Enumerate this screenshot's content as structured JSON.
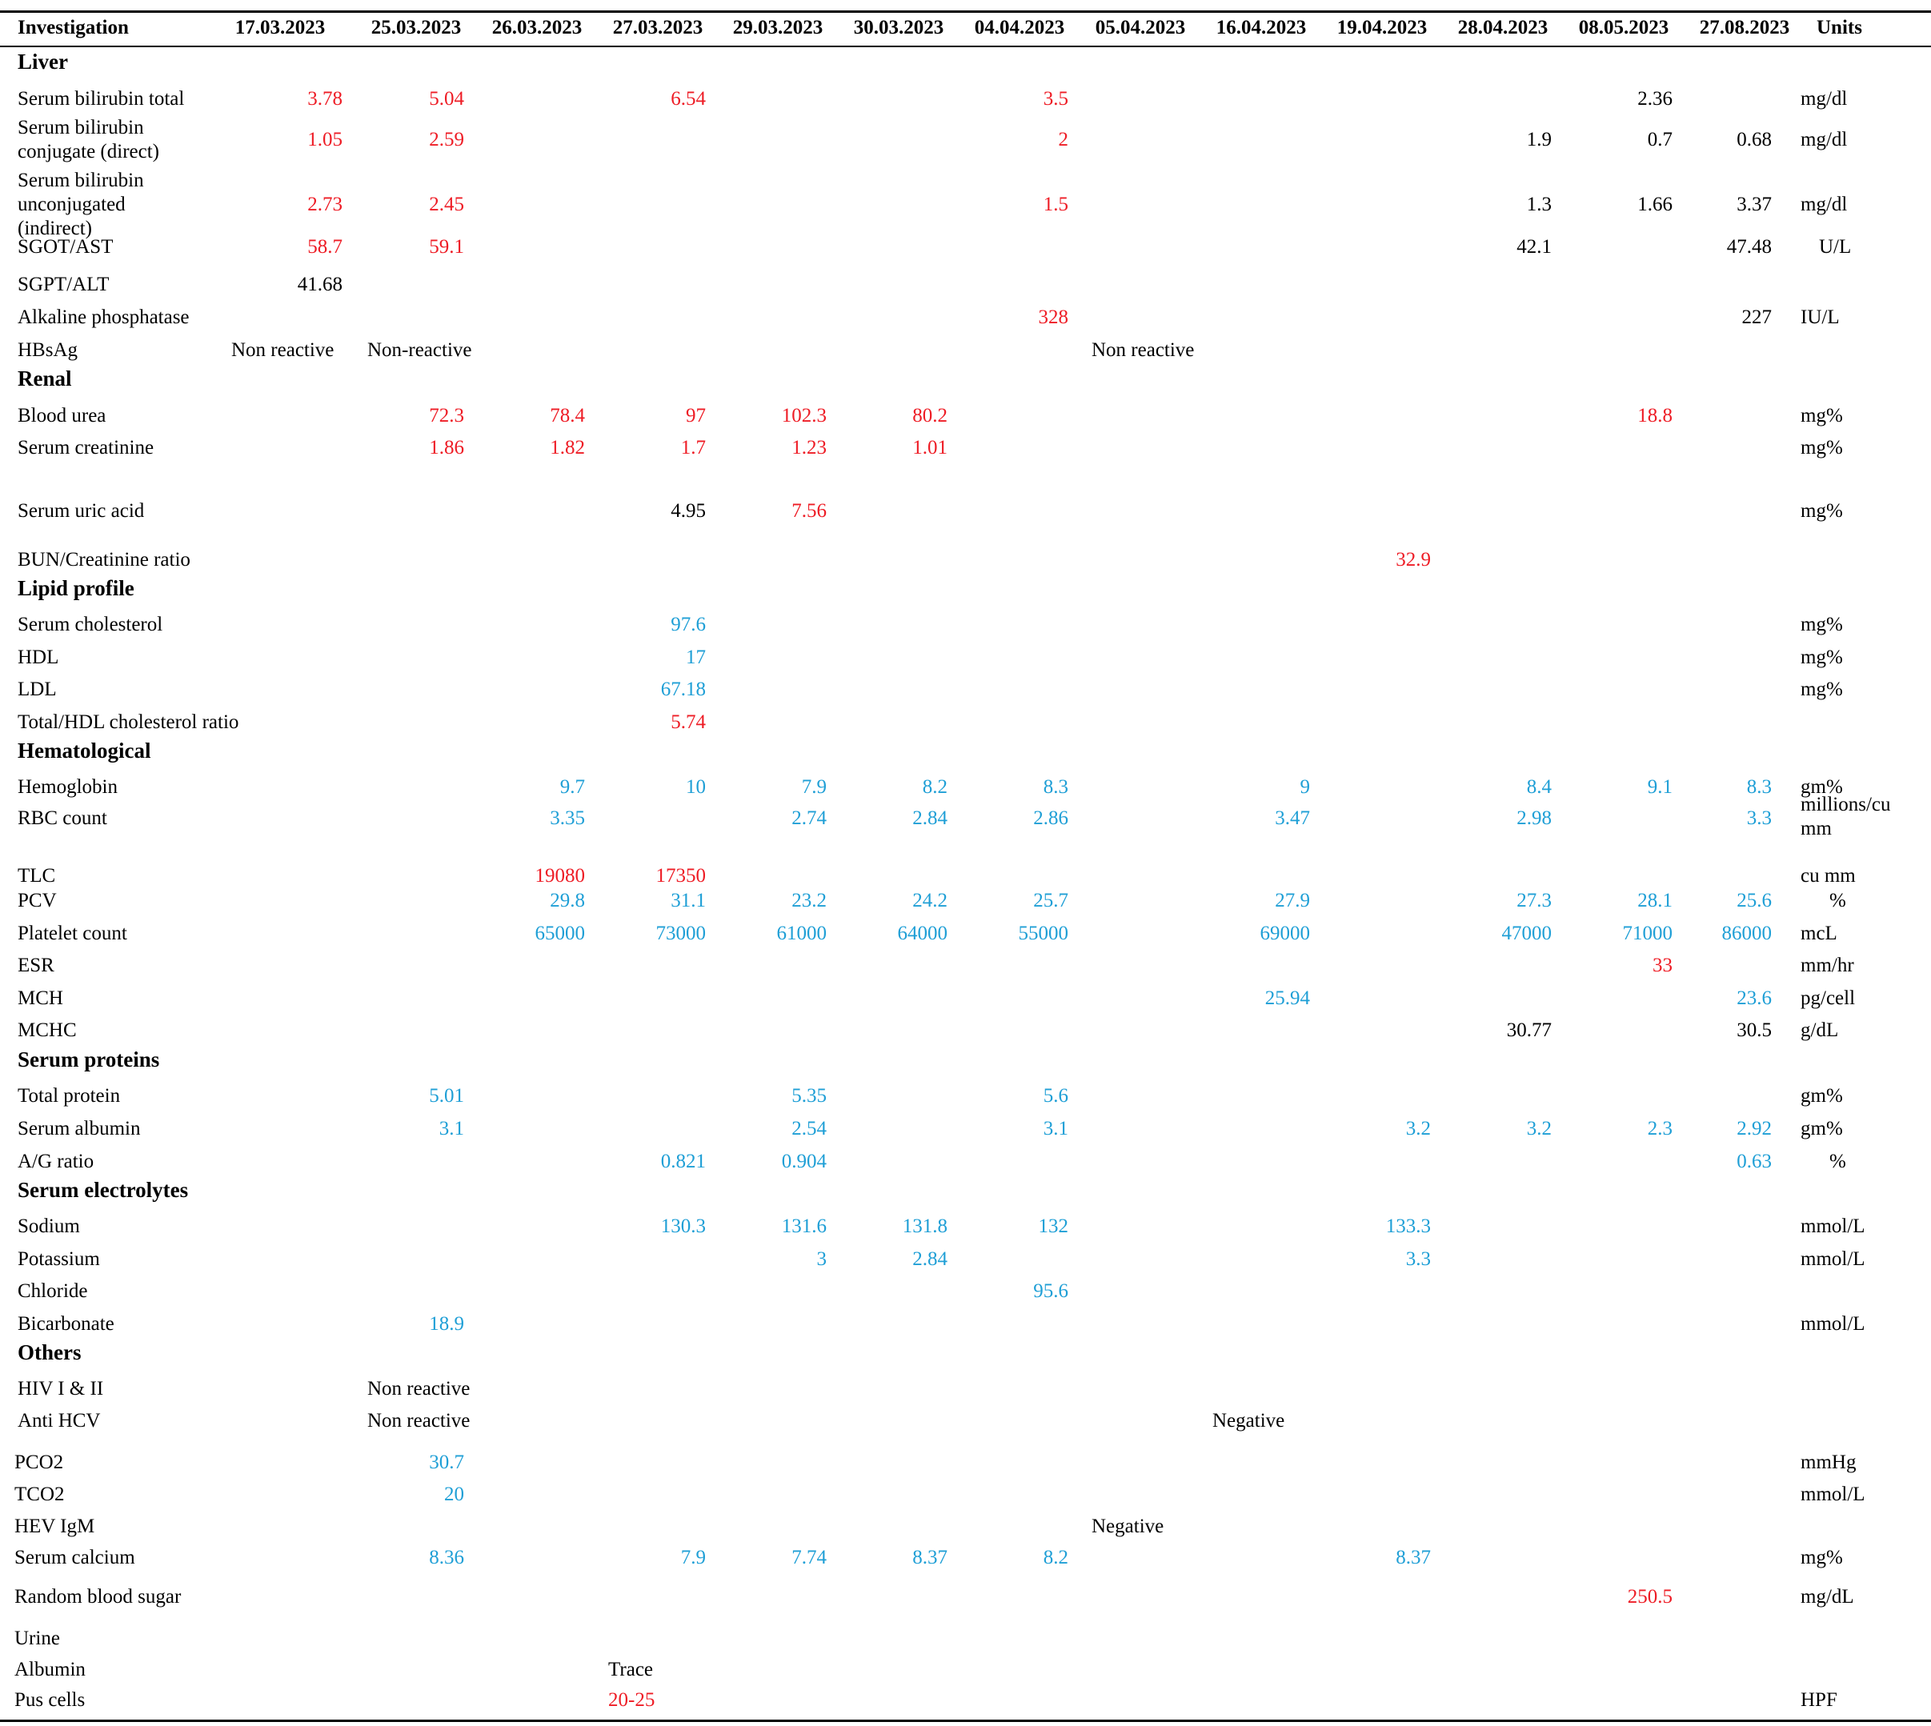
{
  "columns": [
    "Investigation",
    "17.03.2023",
    "25.03.2023",
    "26.03.2023",
    "27.03.2023",
    "29.03.2023",
    "30.03.2023",
    "04.04.2023",
    "05.04.2023",
    "16.04.2023",
    "19.04.2023",
    "28.04.2023",
    "08.05.2023",
    "27.08.2023",
    "Units"
  ],
  "colors": {
    "r": "#ee1c25",
    "b": "#1f9fd6",
    "k": "#000000"
  },
  "rows": [
    {
      "section": "Liver"
    },
    {
      "label": "Serum bilirubin total",
      "cells": [
        [
          1,
          "3.78",
          "r"
        ],
        [
          2,
          "5.04",
          "r"
        ],
        [
          4,
          "6.54",
          "r"
        ],
        [
          7,
          "3.5",
          "r"
        ],
        [
          12,
          "2.36",
          "k"
        ]
      ],
      "unit": "mg/dl"
    },
    {
      "label": "Serum bilirubin\nconjugate (direct)",
      "cells": [
        [
          1,
          "1.05",
          "r"
        ],
        [
          2,
          "2.59",
          "r"
        ],
        [
          7,
          "2",
          "r"
        ],
        [
          11,
          "1.9",
          "k"
        ],
        [
          12,
          "0.7",
          "k"
        ],
        [
          13,
          "0.68",
          "k"
        ]
      ],
      "unit": "mg/dl"
    },
    {
      "label": "Serum bilirubin\nunconjugated\n(indirect)",
      "cells": [
        [
          1,
          "2.73",
          "r"
        ],
        [
          2,
          "2.45",
          "r"
        ],
        [
          7,
          "1.5",
          "r"
        ],
        [
          11,
          "1.3",
          "k"
        ],
        [
          12,
          "1.66",
          "k"
        ],
        [
          13,
          "3.37",
          "k"
        ]
      ],
      "unit": "mg/dl"
    },
    {
      "label": "SGOT/AST",
      "cells": [
        [
          1,
          "58.7",
          "r"
        ],
        [
          2,
          "59.1",
          "r"
        ],
        [
          11,
          "42.1",
          "k"
        ],
        [
          13,
          "47.48",
          "k"
        ]
      ],
      "unit": "U/L"
    },
    {
      "label": "SGPT/ALT",
      "cells": [
        [
          1,
          "41.68",
          "k"
        ]
      ],
      "unit": ""
    },
    {
      "label": "Alkaline phosphatase",
      "cells": [
        [
          7,
          "328",
          "r"
        ],
        [
          13,
          "227",
          "k"
        ]
      ],
      "unit": "IU/L"
    },
    {
      "label": "HBsAg",
      "cells": [
        [
          1,
          "Non reactive",
          "k",
          "L"
        ],
        [
          2,
          "Non-reactive",
          "k",
          "L"
        ],
        [
          8,
          "Non reactive",
          "k",
          "L"
        ]
      ],
      "unit": ""
    },
    {
      "section": "Renal"
    },
    {
      "label": "Blood urea",
      "cells": [
        [
          2,
          "72.3",
          "r"
        ],
        [
          3,
          "78.4",
          "r"
        ],
        [
          4,
          "97",
          "r"
        ],
        [
          5,
          "102.3",
          "r"
        ],
        [
          6,
          "80.2",
          "r"
        ],
        [
          12,
          "18.8",
          "r"
        ]
      ],
      "unit": "mg%"
    },
    {
      "label": "Serum creatinine",
      "cells": [
        [
          2,
          "1.86",
          "r"
        ],
        [
          3,
          "1.82",
          "r"
        ],
        [
          4,
          "1.7",
          "r"
        ],
        [
          5,
          "1.23",
          "r"
        ],
        [
          6,
          "1.01",
          "r"
        ]
      ],
      "unit": "mg%"
    },
    {
      "label": "Serum uric acid",
      "cells": [
        [
          4,
          "4.95",
          "k"
        ],
        [
          5,
          "7.56",
          "r"
        ]
      ],
      "unit": "mg%"
    },
    {
      "label": "BUN/Creatinine ratio",
      "cells": [
        [
          10,
          "32.9",
          "r"
        ]
      ],
      "unit": ""
    },
    {
      "section": "Lipid profile"
    },
    {
      "label": "Serum cholesterol",
      "cells": [
        [
          4,
          "97.6",
          "b"
        ]
      ],
      "unit": "mg%"
    },
    {
      "label": "HDL",
      "cells": [
        [
          4,
          "17",
          "b"
        ]
      ],
      "unit": "mg%"
    },
    {
      "label": "LDL",
      "cells": [
        [
          4,
          "67.18",
          "b"
        ]
      ],
      "unit": "mg%"
    },
    {
      "label": "Total/HDL cholesterol ratio",
      "cells": [
        [
          4,
          "5.74",
          "r"
        ]
      ],
      "unit": ""
    },
    {
      "section": "Hematological"
    },
    {
      "label": "Hemoglobin",
      "cells": [
        [
          3,
          "9.7",
          "b"
        ],
        [
          4,
          "10",
          "b"
        ],
        [
          5,
          "7.9",
          "b"
        ],
        [
          6,
          "8.2",
          "b"
        ],
        [
          7,
          "8.3",
          "b"
        ],
        [
          9,
          "9",
          "b"
        ],
        [
          11,
          "8.4",
          "b"
        ],
        [
          12,
          "9.1",
          "b"
        ],
        [
          13,
          "8.3",
          "b"
        ]
      ],
      "unit": "gm%"
    },
    {
      "label": "RBC count",
      "cells": [
        [
          3,
          "3.35",
          "b"
        ],
        [
          5,
          "2.74",
          "b"
        ],
        [
          6,
          "2.84",
          "b"
        ],
        [
          7,
          "2.86",
          "b"
        ],
        [
          9,
          "3.47",
          "b"
        ],
        [
          11,
          "2.98",
          "b"
        ],
        [
          13,
          "3.3",
          "b"
        ]
      ],
      "unit": "millions/cu\nmm"
    },
    {
      "label": "TLC",
      "cells": [
        [
          3,
          "19080",
          "r"
        ],
        [
          4,
          "17350",
          "r"
        ]
      ],
      "unit": "cu mm"
    },
    {
      "label": "PCV",
      "cells": [
        [
          3,
          "29.8",
          "b"
        ],
        [
          4,
          "31.1",
          "b"
        ],
        [
          5,
          "23.2",
          "b"
        ],
        [
          6,
          "24.2",
          "b"
        ],
        [
          7,
          "25.7",
          "b"
        ],
        [
          9,
          "27.9",
          "b"
        ],
        [
          11,
          "27.3",
          "b"
        ],
        [
          12,
          "28.1",
          "b"
        ],
        [
          13,
          "25.6",
          "b"
        ]
      ],
      "unit": "%"
    },
    {
      "label": "Platelet count",
      "cells": [
        [
          3,
          "65000",
          "b"
        ],
        [
          4,
          "73000",
          "b"
        ],
        [
          5,
          "61000",
          "b"
        ],
        [
          6,
          "64000",
          "b"
        ],
        [
          7,
          "55000",
          "b"
        ],
        [
          9,
          "69000",
          "b"
        ],
        [
          11,
          "47000",
          "b"
        ],
        [
          12,
          "71000",
          "b"
        ],
        [
          13,
          "86000",
          "b"
        ]
      ],
      "unit": "mcL"
    },
    {
      "label": "ESR",
      "cells": [
        [
          12,
          "33",
          "r"
        ]
      ],
      "unit": "mm/hr"
    },
    {
      "label": "MCH",
      "cells": [
        [
          9,
          "25.94",
          "b"
        ],
        [
          13,
          "23.6",
          "b"
        ]
      ],
      "unit": "pg/cell"
    },
    {
      "label": "MCHC",
      "cells": [
        [
          11,
          "30.77",
          "k"
        ],
        [
          13,
          "30.5",
          "k"
        ]
      ],
      "unit": "g/dL"
    },
    {
      "section": "Serum proteins"
    },
    {
      "label": "Total protein",
      "cells": [
        [
          2,
          "5.01",
          "b"
        ],
        [
          5,
          "5.35",
          "b"
        ],
        [
          7,
          "5.6",
          "b"
        ]
      ],
      "unit": "gm%"
    },
    {
      "label": "Serum albumin",
      "cells": [
        [
          2,
          "3.1",
          "b"
        ],
        [
          5,
          "2.54",
          "b"
        ],
        [
          7,
          "3.1",
          "b"
        ],
        [
          10,
          "3.2",
          "b"
        ],
        [
          11,
          "3.2",
          "b"
        ],
        [
          12,
          "2.3",
          "b"
        ],
        [
          13,
          "2.92",
          "b"
        ]
      ],
      "unit": "gm%"
    },
    {
      "label": "A/G ratio",
      "cells": [
        [
          4,
          "0.821",
          "b"
        ],
        [
          5,
          "0.904",
          "b"
        ],
        [
          13,
          "0.63",
          "b"
        ]
      ],
      "unit": "%"
    },
    {
      "section": "Serum electrolytes"
    },
    {
      "label": "Sodium",
      "cells": [
        [
          4,
          "130.3",
          "b"
        ],
        [
          5,
          "131.6",
          "b"
        ],
        [
          6,
          "131.8",
          "b"
        ],
        [
          7,
          "132",
          "b"
        ],
        [
          10,
          "133.3",
          "b"
        ]
      ],
      "unit": "mmol/L"
    },
    {
      "label": "Potassium",
      "cells": [
        [
          5,
          "3",
          "b"
        ],
        [
          6,
          "2.84",
          "b"
        ],
        [
          10,
          "3.3",
          "b"
        ]
      ],
      "unit": "mmol/L"
    },
    {
      "label": "Chloride",
      "cells": [
        [
          7,
          "95.6",
          "b"
        ]
      ],
      "unit": ""
    },
    {
      "label": "Bicarbonate",
      "cells": [
        [
          2,
          "18.9",
          "b"
        ]
      ],
      "unit": "mmol/L"
    },
    {
      "section": "Others"
    },
    {
      "label": "HIV I & II",
      "cells": [
        [
          2,
          "Non reactive",
          "k",
          "L"
        ]
      ],
      "unit": ""
    },
    {
      "label": "Anti HCV",
      "cells": [
        [
          2,
          "Non reactive",
          "k",
          "L"
        ],
        [
          9,
          "Negative",
          "k",
          "L"
        ]
      ],
      "unit": ""
    },
    {
      "label": "PCO2",
      "cells": [
        [
          2,
          "30.7",
          "b"
        ]
      ],
      "unit": "mmHg"
    },
    {
      "label": "TCO2",
      "cells": [
        [
          2,
          "20",
          "b"
        ]
      ],
      "unit": "mmol/L"
    },
    {
      "label": "HEV IgM",
      "cells": [
        [
          8,
          "Negative",
          "k",
          "L"
        ]
      ],
      "unit": ""
    },
    {
      "label": "Serum calcium",
      "cells": [
        [
          2,
          "8.36",
          "b"
        ],
        [
          4,
          "7.9",
          "b"
        ],
        [
          5,
          "7.74",
          "b"
        ],
        [
          6,
          "8.37",
          "b"
        ],
        [
          7,
          "8.2",
          "b"
        ],
        [
          10,
          "8.37",
          "b"
        ]
      ],
      "unit": "mg%"
    },
    {
      "label": "Random blood sugar",
      "cells": [
        [
          12,
          "250.5",
          "r"
        ]
      ],
      "unit": "mg/dL"
    },
    {
      "label": "Urine",
      "cells": [],
      "unit": ""
    },
    {
      "label": "Albumin",
      "cells": [
        [
          4,
          "Trace",
          "k",
          "L"
        ]
      ],
      "unit": ""
    },
    {
      "label": "Pus cells",
      "cells": [
        [
          4,
          "20-25",
          "r",
          "L"
        ]
      ],
      "unit": "HPF"
    }
  ]
}
